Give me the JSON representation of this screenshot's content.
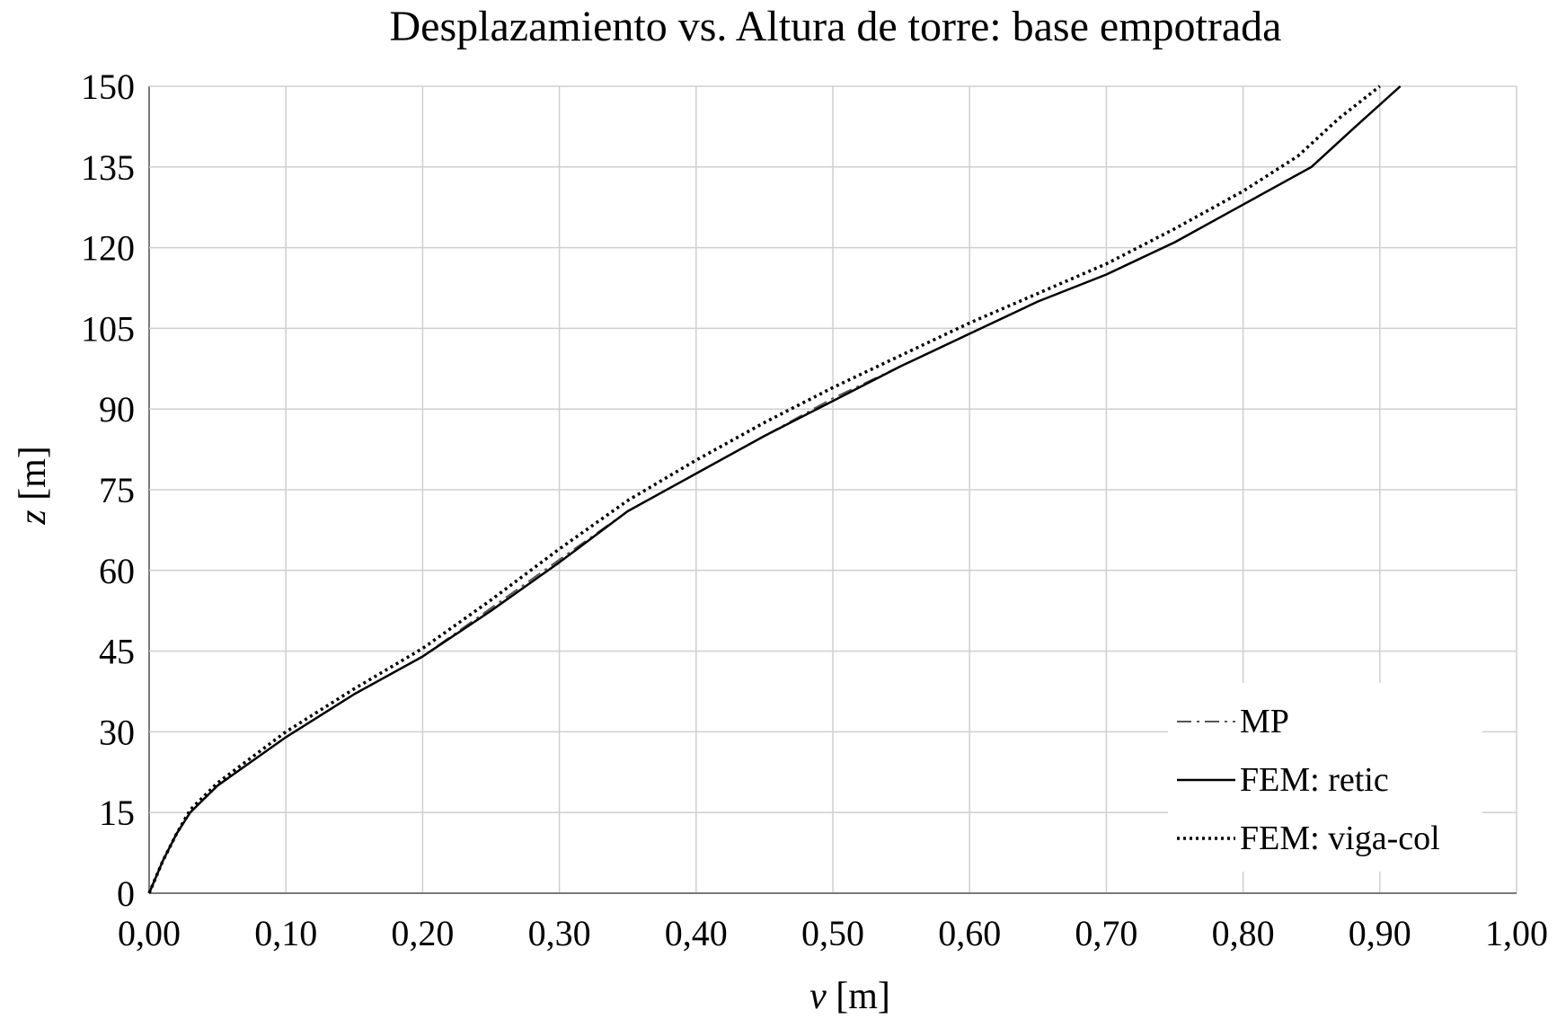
{
  "chart_data": {
    "type": "line",
    "title": "Desplazamiento vs. Altura de torre: base empotrada",
    "xlabel_var": "v",
    "xlabel_unit": " [m]",
    "ylabel_var": "z",
    "ylabel_unit": " [m]",
    "xlim": [
      0,
      1
    ],
    "ylim": [
      0,
      150
    ],
    "x_ticks": [
      "0,00",
      "0,10",
      "0,20",
      "0,30",
      "0,40",
      "0,50",
      "0,60",
      "0,70",
      "0,80",
      "0,90",
      "1,00"
    ],
    "y_ticks": [
      "0",
      "15",
      "30",
      "45",
      "60",
      "75",
      "90",
      "105",
      "120",
      "135",
      "150"
    ],
    "grid": true,
    "legend_position": "bottom-right",
    "series": [
      {
        "name": "MP",
        "style": "dashdot",
        "color": "#555555",
        "points": [
          [
            0,
            0
          ],
          [
            0.01,
            6
          ],
          [
            0.02,
            11
          ],
          [
            0.03,
            15
          ],
          [
            0.05,
            20
          ],
          [
            0.1,
            29
          ],
          [
            0.15,
            37
          ],
          [
            0.2,
            44
          ],
          [
            0.25,
            53
          ],
          [
            0.3,
            62
          ],
          [
            0.35,
            71
          ],
          [
            0.4,
            78
          ],
          [
            0.45,
            85
          ],
          [
            0.5,
            92
          ],
          [
            0.55,
            98
          ],
          [
            0.6,
            104
          ],
          [
            0.65,
            110
          ],
          [
            0.7,
            115
          ],
          [
            0.75,
            121
          ],
          [
            0.8,
            128
          ],
          [
            0.85,
            135
          ],
          [
            0.88,
            142
          ],
          [
            0.915,
            150
          ]
        ]
      },
      {
        "name": "FEM: retic",
        "style": "solid",
        "color": "#000000",
        "points": [
          [
            0,
            0
          ],
          [
            0.01,
            6
          ],
          [
            0.02,
            11
          ],
          [
            0.03,
            15
          ],
          [
            0.05,
            20
          ],
          [
            0.1,
            29
          ],
          [
            0.15,
            37
          ],
          [
            0.2,
            44
          ],
          [
            0.25,
            52.5
          ],
          [
            0.3,
            61.5
          ],
          [
            0.35,
            71
          ],
          [
            0.4,
            78
          ],
          [
            0.45,
            85
          ],
          [
            0.5,
            91.5
          ],
          [
            0.55,
            98
          ],
          [
            0.6,
            104
          ],
          [
            0.65,
            110
          ],
          [
            0.7,
            115
          ],
          [
            0.75,
            121
          ],
          [
            0.8,
            128
          ],
          [
            0.85,
            135
          ],
          [
            0.88,
            142
          ],
          [
            0.915,
            150
          ]
        ]
      },
      {
        "name": "FEM: viga-col",
        "style": "dotted",
        "color": "#000000",
        "points": [
          [
            0,
            0
          ],
          [
            0.01,
            6
          ],
          [
            0.02,
            11
          ],
          [
            0.03,
            15.5
          ],
          [
            0.05,
            20.5
          ],
          [
            0.1,
            30
          ],
          [
            0.15,
            38
          ],
          [
            0.2,
            45.5
          ],
          [
            0.25,
            54.5
          ],
          [
            0.3,
            64
          ],
          [
            0.35,
            73
          ],
          [
            0.4,
            80.5
          ],
          [
            0.45,
            87.5
          ],
          [
            0.5,
            94
          ],
          [
            0.55,
            100
          ],
          [
            0.6,
            106
          ],
          [
            0.65,
            111.5
          ],
          [
            0.7,
            117
          ],
          [
            0.75,
            123.5
          ],
          [
            0.8,
            130.5
          ],
          [
            0.84,
            137
          ],
          [
            0.87,
            144
          ],
          [
            0.9,
            150
          ]
        ]
      }
    ]
  }
}
